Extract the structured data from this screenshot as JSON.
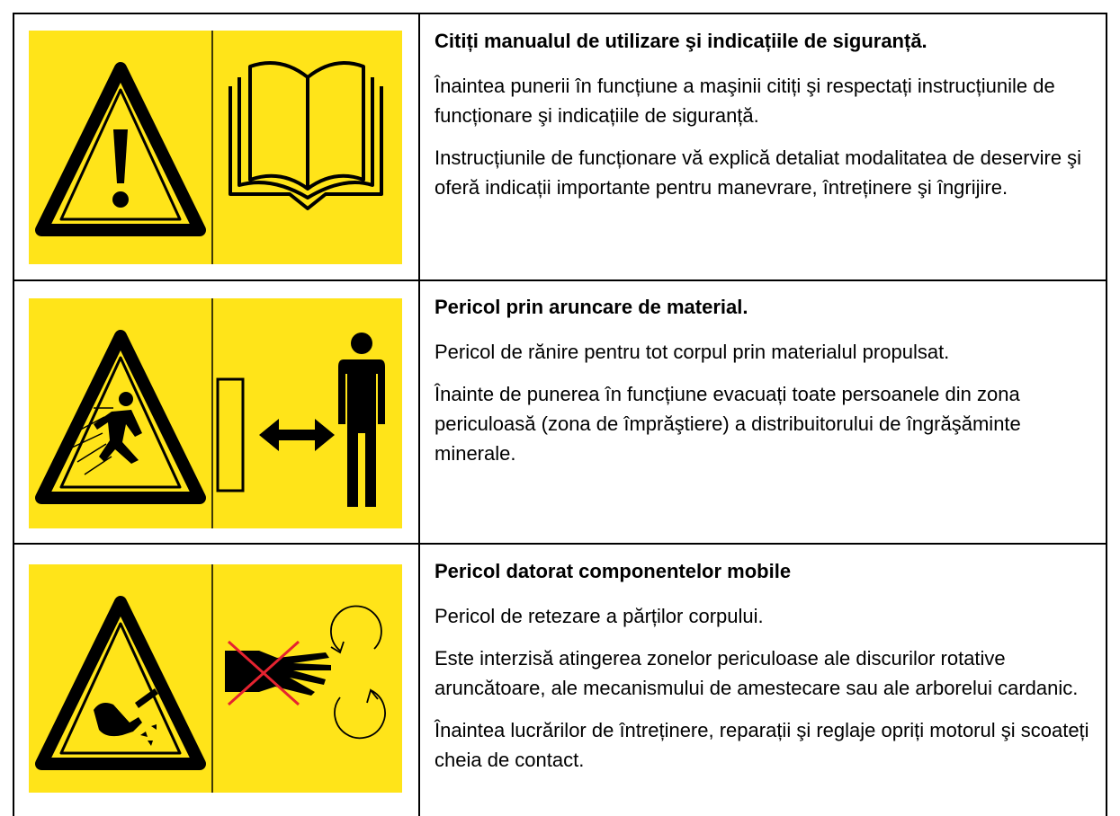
{
  "rows": [
    {
      "title": "Citiți manualul de utilizare şi indicațiile de siguranță.",
      "paragraphs": [
        "Înaintea punerii în funcțiune a maşinii citiți şi respectați instrucțiunile de funcționare şi indicațiile de siguranță.",
        "Instrucțiunile de funcționare vă explică detaliat modalitatea de deservire şi oferă indicații importante pentru manevrare, întreținere şi îngrijire."
      ]
    },
    {
      "title": "Pericol prin aruncare de material.",
      "paragraphs": [
        "Pericol de rănire pentru tot corpul prin materialul propulsat.",
        "Înainte de punerea în funcțiune evacuați toate persoanele din zona periculoasă (zona de împrăştiere) a distribuitorului de îngrăşăminte minerale."
      ]
    },
    {
      "title": "Pericol datorat componentelor mobile",
      "paragraphs": [
        "Pericol de retezare a părților corpului.",
        "Este interzisă atingerea zonelor periculoase ale discurilor rotative aruncătoare, ale mecanismului de amestecare sau ale arborelui cardanic.",
        "Înaintea lucrărilor de întreținere, reparații şi reglaje opriți motorul şi scoateți cheia de contact."
      ]
    }
  ]
}
